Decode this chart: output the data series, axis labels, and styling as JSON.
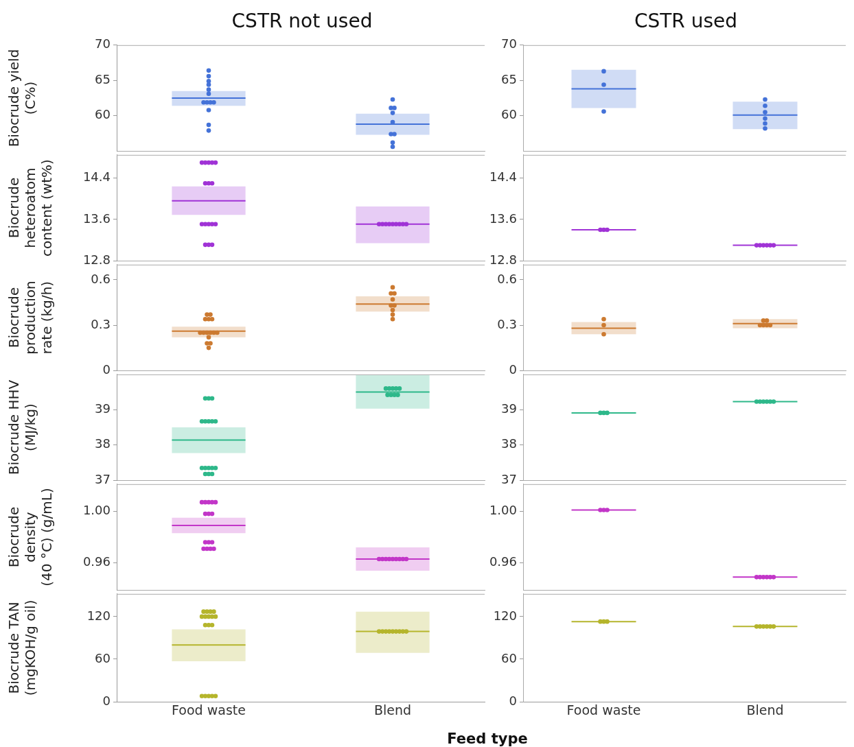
{
  "chart_data": [
    {
      "type": "box",
      "title": "CSTR not used",
      "ylabel": "Biocrude yield (C%)",
      "categories": [
        "Food waste",
        "Blend"
      ],
      "ylim": [
        55,
        70
      ],
      "yticks": [
        60,
        65,
        70
      ],
      "tick_labels": "y",
      "grid": false,
      "legend": false,
      "series": [
        {
          "type": "box",
          "color": "#4472d8",
          "boxes": [
            {
              "low": 61.4,
              "q1": 61.4,
              "median": 62.5,
              "q3": 63.5,
              "high": 63.5
            },
            {
              "low": 57.3,
              "q1": 57.3,
              "median": 58.8,
              "q3": 60.3,
              "high": 60.3
            }
          ]
        },
        {
          "type": "scatter",
          "marker": "circle",
          "color": "#4472d8",
          "x": [
            "Food waste",
            "Food waste",
            "Food waste",
            "Food waste",
            "Food waste",
            "Food waste",
            "Food waste",
            "Food waste",
            "Food waste",
            "Food waste",
            "Food waste",
            "Food waste",
            "Food waste",
            "Blend",
            "Blend",
            "Blend",
            "Blend",
            "Blend",
            "Blend",
            "Blend",
            "Blend",
            "Blend"
          ],
          "values": [
            66.4,
            65.6,
            64.9,
            64.4,
            63.7,
            63.1,
            61.9,
            61.9,
            61.9,
            61.9,
            60.8,
            58.7,
            57.9,
            62.3,
            61.1,
            61.1,
            60.4,
            59.1,
            57.4,
            57.4,
            56.2,
            55.6
          ]
        }
      ]
    },
    {
      "type": "box",
      "title": "CSTR used",
      "categories": [
        "Food waste",
        "Blend"
      ],
      "ylim": [
        55,
        70
      ],
      "yticks": [
        60,
        65,
        70
      ],
      "tick_labels": "y",
      "grid": false,
      "legend": false,
      "series": [
        {
          "type": "box",
          "color": "#4472d8",
          "boxes": [
            {
              "low": 61.1,
              "q1": 61.1,
              "median": 63.8,
              "q3": 66.5,
              "high": 66.5
            },
            {
              "low": 58.1,
              "q1": 58.1,
              "median": 60.1,
              "q3": 62.0,
              "high": 62.0
            }
          ]
        },
        {
          "type": "scatter",
          "marker": "circle",
          "color": "#4472d8",
          "x": [
            "Food waste",
            "Food waste",
            "Food waste",
            "Blend",
            "Blend",
            "Blend",
            "Blend",
            "Blend",
            "Blend"
          ],
          "values": [
            66.3,
            64.4,
            60.6,
            62.3,
            61.4,
            60.5,
            59.6,
            58.9,
            58.2
          ]
        }
      ]
    },
    {
      "type": "box",
      "ylabel": "Biocrude heteroatom content (wt%)",
      "categories": [
        "Food waste",
        "Blend"
      ],
      "ylim": [
        12.8,
        14.85
      ],
      "yticks": [
        12.8,
        13.6,
        14.4
      ],
      "tick_labels": "y",
      "grid": false,
      "legend": false,
      "series": [
        {
          "type": "box",
          "color": "#a033d6",
          "boxes": [
            {
              "low": 13.69,
              "q1": 13.69,
              "median": 13.96,
              "q3": 14.24,
              "high": 14.24
            },
            {
              "low": 13.14,
              "q1": 13.14,
              "median": 13.51,
              "q3": 13.85,
              "high": 13.85
            }
          ]
        },
        {
          "type": "scatter",
          "marker": "circle",
          "color": "#a033d6",
          "x": [
            "Food waste",
            "Food waste",
            "Food waste",
            "Food waste",
            "Food waste",
            "Food waste",
            "Food waste",
            "Food waste",
            "Food waste",
            "Food waste",
            "Food waste",
            "Food waste",
            "Food waste",
            "Food waste",
            "Food waste",
            "Food waste",
            "Blend",
            "Blend",
            "Blend",
            "Blend",
            "Blend",
            "Blend",
            "Blend",
            "Blend",
            "Blend"
          ],
          "values": [
            14.7,
            14.7,
            14.7,
            14.7,
            14.7,
            14.3,
            14.3,
            14.3,
            13.51,
            13.51,
            13.51,
            13.51,
            13.51,
            13.11,
            13.11,
            13.11,
            13.51,
            13.51,
            13.51,
            13.51,
            13.51,
            13.51,
            13.51,
            13.51,
            13.51
          ]
        }
      ]
    },
    {
      "type": "box",
      "categories": [
        "Food waste",
        "Blend"
      ],
      "ylim": [
        12.8,
        14.85
      ],
      "yticks": [
        12.8,
        13.6,
        14.4
      ],
      "tick_labels": "y",
      "grid": false,
      "legend": false,
      "series": [
        {
          "type": "box",
          "color": "#a033d6",
          "boxes": [
            {
              "low": 13.4,
              "q1": 13.4,
              "median": 13.4,
              "q3": 13.4,
              "high": 13.4
            },
            {
              "low": 13.1,
              "q1": 13.1,
              "median": 13.1,
              "q3": 13.1,
              "high": 13.1
            }
          ]
        },
        {
          "type": "scatter",
          "marker": "circle",
          "color": "#a033d6",
          "x": [
            "Food waste",
            "Food waste",
            "Food waste",
            "Blend",
            "Blend",
            "Blend",
            "Blend",
            "Blend",
            "Blend"
          ],
          "values": [
            13.4,
            13.4,
            13.4,
            13.1,
            13.1,
            13.1,
            13.1,
            13.1,
            13.1
          ]
        }
      ]
    },
    {
      "type": "box",
      "ylabel": "Biocrude production rate (kg/h)",
      "categories": [
        "Food waste",
        "Blend"
      ],
      "ylim": [
        0,
        0.7
      ],
      "yticks": [
        0,
        0.3,
        0.6
      ],
      "tick_labels": "y",
      "grid": false,
      "legend": false,
      "series": [
        {
          "type": "box",
          "color": "#cc7a30",
          "boxes": [
            {
              "low": 0.22,
              "q1": 0.22,
              "median": 0.26,
              "q3": 0.29,
              "high": 0.29
            },
            {
              "low": 0.39,
              "q1": 0.39,
              "median": 0.44,
              "q3": 0.49,
              "high": 0.49
            }
          ]
        },
        {
          "type": "scatter",
          "marker": "circle",
          "color": "#cc7a30",
          "x": [
            "Food waste",
            "Food waste",
            "Food waste",
            "Food waste",
            "Food waste",
            "Food waste",
            "Food waste",
            "Food waste",
            "Food waste",
            "Food waste",
            "Food waste",
            "Food waste",
            "Food waste",
            "Food waste",
            "Food waste",
            "Blend",
            "Blend",
            "Blend",
            "Blend",
            "Blend",
            "Blend",
            "Blend",
            "Blend",
            "Blend"
          ],
          "values": [
            0.37,
            0.37,
            0.34,
            0.34,
            0.34,
            0.25,
            0.25,
            0.25,
            0.25,
            0.25,
            0.25,
            0.22,
            0.18,
            0.18,
            0.15,
            0.55,
            0.51,
            0.51,
            0.47,
            0.43,
            0.43,
            0.4,
            0.37,
            0.34
          ]
        }
      ]
    },
    {
      "type": "box",
      "categories": [
        "Food waste",
        "Blend"
      ],
      "ylim": [
        0,
        0.7
      ],
      "yticks": [
        0,
        0.3,
        0.6
      ],
      "tick_labels": "y",
      "grid": false,
      "legend": false,
      "series": [
        {
          "type": "box",
          "color": "#cc7a30",
          "boxes": [
            {
              "low": 0.24,
              "q1": 0.24,
              "median": 0.28,
              "q3": 0.32,
              "high": 0.32
            },
            {
              "low": 0.28,
              "q1": 0.28,
              "median": 0.31,
              "q3": 0.34,
              "high": 0.34
            }
          ]
        },
        {
          "type": "scatter",
          "marker": "circle",
          "color": "#cc7a30",
          "x": [
            "Food waste",
            "Food waste",
            "Food waste",
            "Blend",
            "Blend",
            "Blend",
            "Blend",
            "Blend",
            "Blend"
          ],
          "values": [
            0.34,
            0.3,
            0.24,
            0.33,
            0.33,
            0.3,
            0.3,
            0.3,
            0.3
          ]
        }
      ]
    },
    {
      "type": "box",
      "ylabel": "Biocrude HHV (MJ/kg)",
      "categories": [
        "Food waste",
        "Blend"
      ],
      "ylim": [
        37,
        40
      ],
      "yticks": [
        37,
        38,
        39
      ],
      "tick_labels": "y",
      "grid": false,
      "legend": false,
      "series": [
        {
          "type": "box",
          "color": "#2eb88a",
          "boxes": [
            {
              "low": 37.77,
              "q1": 37.77,
              "median": 38.14,
              "q3": 38.5,
              "high": 38.5
            },
            {
              "low": 39.03,
              "q1": 39.03,
              "median": 39.5,
              "q3": 39.98,
              "high": 39.98
            }
          ]
        },
        {
          "type": "scatter",
          "marker": "circle",
          "color": "#2eb88a",
          "x": [
            "Food waste",
            "Food waste",
            "Food waste",
            "Food waste",
            "Food waste",
            "Food waste",
            "Food waste",
            "Food waste",
            "Food waste",
            "Food waste",
            "Food waste",
            "Food waste",
            "Food waste",
            "Food waste",
            "Food waste",
            "Food waste",
            "Blend",
            "Blend",
            "Blend",
            "Blend",
            "Blend",
            "Blend",
            "Blend",
            "Blend",
            "Blend"
          ],
          "values": [
            39.32,
            39.32,
            39.32,
            38.67,
            38.67,
            38.67,
            38.67,
            38.67,
            37.35,
            37.35,
            37.35,
            37.35,
            37.35,
            37.18,
            37.18,
            37.18,
            39.6,
            39.6,
            39.6,
            39.6,
            39.6,
            39.42,
            39.42,
            39.42,
            39.42
          ]
        }
      ]
    },
    {
      "type": "box",
      "categories": [
        "Food waste",
        "Blend"
      ],
      "ylim": [
        37,
        40
      ],
      "yticks": [
        37,
        38,
        39
      ],
      "tick_labels": "y",
      "grid": false,
      "legend": false,
      "series": [
        {
          "type": "box",
          "color": "#2eb88a",
          "boxes": [
            {
              "low": 38.91,
              "q1": 38.91,
              "median": 38.91,
              "q3": 38.91,
              "high": 38.91
            },
            {
              "low": 39.23,
              "q1": 39.23,
              "median": 39.23,
              "q3": 39.23,
              "high": 39.23
            }
          ]
        },
        {
          "type": "scatter",
          "marker": "circle",
          "color": "#2eb88a",
          "x": [
            "Food waste",
            "Food waste",
            "Food waste",
            "Blend",
            "Blend",
            "Blend",
            "Blend",
            "Blend",
            "Blend"
          ],
          "values": [
            38.91,
            38.91,
            38.91,
            39.23,
            39.23,
            39.23,
            39.23,
            39.23,
            39.23
          ]
        }
      ]
    },
    {
      "type": "box",
      "ylabel": "Biocrude density (40 °C) (g/mL)",
      "categories": [
        "Food waste",
        "Blend"
      ],
      "ylim": [
        0.939,
        1.021
      ],
      "yticks": [
        0.96,
        {
          "value": 1,
          "label": "1.00"
        }
      ],
      "tick_labels": "y",
      "grid": false,
      "legend": false,
      "series": [
        {
          "type": "box",
          "color": "#c236c8",
          "boxes": [
            {
              "low": 0.983,
              "q1": 0.983,
              "median": 0.989,
              "q3": 0.995,
              "high": 0.995
            },
            {
              "low": 0.954,
              "q1": 0.954,
              "median": 0.963,
              "q3": 0.972,
              "high": 0.972
            }
          ]
        },
        {
          "type": "scatter",
          "marker": "circle",
          "color": "#c236c8",
          "x": [
            "Food waste",
            "Food waste",
            "Food waste",
            "Food waste",
            "Food waste",
            "Food waste",
            "Food waste",
            "Food waste",
            "Food waste",
            "Food waste",
            "Food waste",
            "Food waste",
            "Food waste",
            "Food waste",
            "Food waste",
            "Blend",
            "Blend",
            "Blend",
            "Blend",
            "Blend",
            "Blend",
            "Blend",
            "Blend",
            "Blend"
          ],
          "values": [
            1.007,
            1.007,
            1.007,
            1.007,
            1.007,
            0.998,
            0.998,
            0.998,
            0.976,
            0.976,
            0.976,
            0.971,
            0.971,
            0.971,
            0.971,
            0.963,
            0.963,
            0.963,
            0.963,
            0.963,
            0.963,
            0.963,
            0.963,
            0.963
          ]
        }
      ]
    },
    {
      "type": "box",
      "categories": [
        "Food waste",
        "Blend"
      ],
      "ylim": [
        0.939,
        1.021
      ],
      "yticks": [
        0.96,
        {
          "value": 1,
          "label": "1.00"
        }
      ],
      "tick_labels": "y",
      "grid": false,
      "legend": false,
      "series": [
        {
          "type": "box",
          "color": "#c236c8",
          "boxes": [
            {
              "low": 1.001,
              "q1": 1.001,
              "median": 1.001,
              "q3": 1.001,
              "high": 1.001
            },
            {
              "low": 0.949,
              "q1": 0.949,
              "median": 0.949,
              "q3": 0.949,
              "high": 0.949
            }
          ]
        },
        {
          "type": "scatter",
          "marker": "circle",
          "color": "#c236c8",
          "x": [
            "Food waste",
            "Food waste",
            "Food waste",
            "Blend",
            "Blend",
            "Blend",
            "Blend",
            "Blend",
            "Blend"
          ],
          "values": [
            1.001,
            1.001,
            1.001,
            0.949,
            0.949,
            0.949,
            0.949,
            0.949,
            0.949
          ]
        }
      ]
    },
    {
      "type": "box",
      "ylabel": "Biocrude TAN (mgKOH/g oil)",
      "xlabel": "Feed type",
      "categories": [
        "Food waste",
        "Blend"
      ],
      "ylim": [
        0,
        152
      ],
      "yticks": [
        0,
        60,
        120
      ],
      "grid": false,
      "legend": false,
      "series": [
        {
          "type": "box",
          "color": "#b5b52c",
          "boxes": [
            {
              "low": 57,
              "q1": 57,
              "median": 80,
              "q3": 102,
              "high": 102
            },
            {
              "low": 69,
              "q1": 69,
              "median": 99,
              "q3": 127,
              "high": 127
            }
          ]
        },
        {
          "type": "scatter",
          "marker": "circle",
          "color": "#b5b52c",
          "x": [
            "Food waste",
            "Food waste",
            "Food waste",
            "Food waste",
            "Food waste",
            "Food waste",
            "Food waste",
            "Food waste",
            "Food waste",
            "Food waste",
            "Food waste",
            "Food waste",
            "Food waste",
            "Food waste",
            "Food waste",
            "Food waste",
            "Food waste",
            "Blend",
            "Blend",
            "Blend",
            "Blend",
            "Blend",
            "Blend",
            "Blend",
            "Blend",
            "Blend"
          ],
          "values": [
            127,
            127,
            127,
            127,
            120,
            120,
            120,
            120,
            120,
            108,
            108,
            108,
            8,
            8,
            8,
            8,
            8,
            99,
            99,
            99,
            99,
            99,
            99,
            99,
            99,
            99
          ]
        }
      ]
    },
    {
      "type": "box",
      "categories": [
        "Food waste",
        "Blend"
      ],
      "ylim": [
        0,
        152
      ],
      "yticks": [
        0,
        60,
        120
      ],
      "grid": false,
      "legend": false,
      "series": [
        {
          "type": "box",
          "color": "#b5b52c",
          "boxes": [
            {
              "low": 113,
              "q1": 113,
              "median": 113,
              "q3": 113,
              "high": 113
            },
            {
              "low": 106,
              "q1": 106,
              "median": 106,
              "q3": 106,
              "high": 106
            }
          ]
        },
        {
          "type": "scatter",
          "marker": "circle",
          "color": "#b5b52c",
          "x": [
            "Food waste",
            "Food waste",
            "Food waste",
            "Blend",
            "Blend",
            "Blend",
            "Blend",
            "Blend",
            "Blend"
          ],
          "values": [
            113,
            113,
            113,
            106,
            106,
            106,
            106,
            106,
            106
          ]
        }
      ]
    }
  ]
}
